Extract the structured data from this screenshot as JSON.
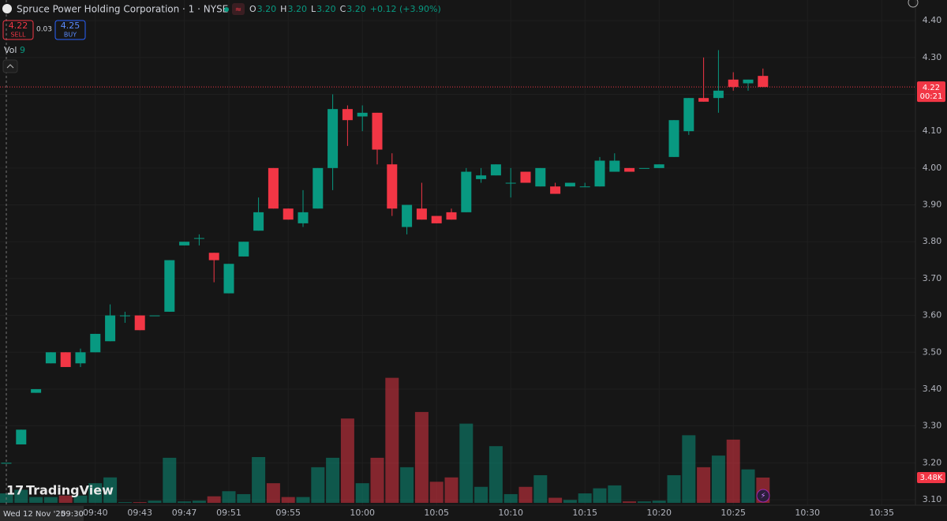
{
  "header": {
    "title": "Spruce Power Holding Corporation · 1 · NYSE",
    "ohlc": [
      {
        "key": "O",
        "value": "3.20"
      },
      {
        "key": "H",
        "value": "3.20"
      },
      {
        "key": "L",
        "value": "3.20"
      },
      {
        "key": "C",
        "value": "3.20"
      }
    ],
    "change": "+0.12 (+3.90%)"
  },
  "trade": {
    "sell": {
      "price": "4.22",
      "label": "SELL"
    },
    "spread": "0.03",
    "buy": {
      "price": "4.25",
      "label": "BUY"
    }
  },
  "volume_legend": {
    "label": "Vol",
    "value": "9"
  },
  "crosshair": {
    "date": "Wed 12 Nov '25",
    "time": "09:30"
  },
  "logo": "TradingView",
  "chart_data": {
    "type": "candlestick",
    "categories": [
      null,
      null,
      null,
      null,
      null,
      null,
      "09:40",
      null,
      null,
      "09:43",
      null,
      null,
      "09:47",
      null,
      null,
      "09:51",
      null,
      null,
      null,
      "09:55",
      null,
      null,
      null,
      null,
      "10:00",
      null,
      null,
      null,
      null,
      "10:05",
      null,
      null,
      null,
      null,
      "10:10",
      null,
      null,
      null,
      null,
      "10:15",
      null,
      null,
      null,
      null,
      "10:20",
      null,
      null,
      null,
      null,
      "10:25",
      null,
      null,
      null,
      null,
      "10:30",
      null,
      null,
      null,
      null,
      "10:35",
      null
    ],
    "open": [
      3.2,
      3.25,
      3.39,
      3.47,
      3.5,
      3.47,
      3.5,
      3.53,
      3.6,
      3.6,
      3.6,
      3.61,
      3.79,
      3.81,
      3.77,
      3.66,
      3.76,
      3.83,
      4.0,
      3.89,
      3.85,
      3.89,
      4.0,
      4.16,
      4.14,
      4.15,
      4.01,
      3.84,
      3.89,
      3.87,
      3.88,
      3.88,
      3.97,
      3.98,
      3.96,
      3.99,
      3.95,
      3.95,
      3.95,
      3.95,
      3.95,
      3.99,
      4.0,
      4.0,
      4.0,
      4.03,
      4.1,
      4.19,
      4.19,
      4.24,
      4.23,
      4.25,
      null,
      null,
      null,
      null,
      null,
      null,
      null,
      null,
      null
    ],
    "high": [
      3.2,
      3.29,
      3.4,
      3.5,
      3.5,
      3.51,
      3.55,
      3.63,
      3.61,
      3.6,
      3.6,
      3.75,
      3.8,
      3.82,
      3.77,
      3.74,
      3.8,
      3.92,
      4.0,
      3.89,
      3.94,
      4.0,
      4.2,
      4.17,
      4.17,
      4.15,
      4.04,
      3.9,
      3.96,
      3.87,
      3.89,
      4.0,
      4.0,
      4.01,
      4.0,
      3.99,
      4.0,
      3.96,
      3.96,
      3.96,
      4.03,
      4.04,
      4.0,
      4.0,
      4.01,
      4.13,
      4.19,
      4.3,
      4.32,
      4.26,
      4.24,
      4.27,
      null,
      null,
      null,
      null,
      null,
      null,
      null,
      null,
      null
    ],
    "low": [
      3.2,
      3.25,
      3.39,
      3.47,
      3.46,
      3.46,
      3.5,
      3.53,
      3.58,
      3.56,
      3.6,
      3.61,
      3.79,
      3.79,
      3.69,
      3.66,
      3.76,
      3.83,
      3.89,
      3.86,
      3.84,
      3.89,
      3.94,
      4.06,
      4.1,
      4.01,
      3.87,
      3.82,
      3.86,
      3.85,
      3.86,
      3.88,
      3.96,
      3.98,
      3.92,
      3.96,
      3.95,
      3.93,
      3.95,
      3.95,
      3.95,
      3.99,
      3.99,
      4.0,
      4.0,
      4.03,
      4.09,
      4.18,
      4.15,
      4.21,
      4.21,
      4.22,
      null,
      null,
      null,
      null,
      null,
      null,
      null,
      null,
      null
    ],
    "close": [
      3.2,
      3.29,
      3.4,
      3.5,
      3.46,
      3.5,
      3.55,
      3.6,
      3.6,
      3.56,
      3.6,
      3.75,
      3.8,
      3.81,
      3.75,
      3.74,
      3.8,
      3.88,
      3.89,
      3.86,
      3.88,
      4.0,
      4.16,
      4.13,
      4.15,
      4.05,
      3.89,
      3.9,
      3.86,
      3.85,
      3.86,
      3.99,
      3.98,
      4.01,
      3.96,
      3.96,
      4.0,
      3.93,
      3.96,
      3.95,
      4.02,
      4.02,
      3.99,
      4.0,
      4.01,
      4.13,
      4.19,
      4.18,
      4.21,
      4.22,
      4.24,
      4.22,
      null,
      null,
      null,
      null,
      null,
      null,
      null,
      null,
      null
    ],
    "volume": [
      1.3,
      1.8,
      0.8,
      0.8,
      1.0,
      1.0,
      2.7,
      3.5,
      0.1,
      0.1,
      0.3,
      6.2,
      0.2,
      0.3,
      0.9,
      1.6,
      1.2,
      6.3,
      2.7,
      0.8,
      0.8,
      4.9,
      6.2,
      11.6,
      2.7,
      6.2,
      17.2,
      4.9,
      12.5,
      2.9,
      3.5,
      10.9,
      2.2,
      7.8,
      1.2,
      2.2,
      3.8,
      0.7,
      0.4,
      1.3,
      2.0,
      2.4,
      0.2,
      0.2,
      0.3,
      3.8,
      9.3,
      4.9,
      6.5,
      8.7,
      4.6,
      3.48,
      null,
      null,
      null,
      null,
      null,
      null,
      null,
      null,
      null
    ],
    "up_color": "#089981",
    "down_color": "#f23645",
    "ylim": [
      3.085,
      4.456
    ],
    "yticks": [
      {
        "value": 4.4,
        "label": "4.40"
      },
      {
        "value": 4.3,
        "label": "4.30"
      },
      {
        "value": 4.2,
        "label": "4.20"
      },
      {
        "value": 4.1,
        "label": "4.10"
      },
      {
        "value": 4.0,
        "label": "4.00"
      },
      {
        "value": 3.9,
        "label": "3.90"
      },
      {
        "value": 3.8,
        "label": "3.80"
      },
      {
        "value": 3.7,
        "label": "3.70"
      },
      {
        "value": 3.6,
        "label": "3.60"
      },
      {
        "value": 3.5,
        "label": "3.50"
      },
      {
        "value": 3.4,
        "label": "3.40"
      },
      {
        "value": 3.3,
        "label": "3.30"
      },
      {
        "value": 3.2,
        "label": "3.20"
      },
      {
        "value": 3.1,
        "label": "3.10"
      }
    ],
    "volume_lim": [
      0,
      24
    ],
    "current_price": {
      "value": 4.22,
      "countdown": "00:21"
    },
    "volume_tag": {
      "value": 3.48,
      "label": "3.48K"
    },
    "grid": true
  }
}
